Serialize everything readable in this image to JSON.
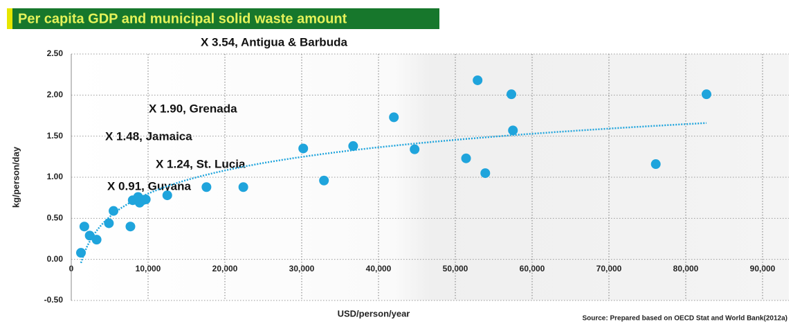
{
  "chart_data": {
    "type": "scatter",
    "title": "Per capita GDP and municipal solid waste amount",
    "xlabel": "USD/person/year",
    "ylabel": "kg/person/day",
    "source": "Source: Prepared based on OECD Stat and World Bank(2012a)",
    "annotations": [
      "X 3.54, Antigua & Barbuda",
      "X 1.90, Grenada",
      "X 1.48, Jamaica",
      "X 1.24, St. Lucia",
      "X 0.91, Guyana"
    ],
    "color": "#1fa4dc",
    "trendline": true,
    "grid": true,
    "x": [
      1260,
      1700,
      2400,
      3300,
      4900,
      5500,
      7700,
      8000,
      8700,
      8900,
      9300,
      9700,
      12500,
      17600,
      22400,
      30200,
      32900,
      36700,
      42000,
      44700,
      51400,
      52900,
      53900,
      57300,
      57500,
      76100,
      82700
    ],
    "values": [
      0.08,
      0.4,
      0.29,
      0.24,
      0.44,
      0.59,
      0.4,
      0.72,
      0.76,
      0.69,
      0.72,
      0.73,
      0.78,
      0.88,
      0.88,
      1.35,
      0.96,
      1.38,
      1.73,
      1.34,
      1.23,
      2.18,
      1.05,
      2.01,
      1.57,
      1.16,
      2.01
    ],
    "xlim": [
      0,
      90000
    ],
    "xticks": [
      0,
      {
        "value": 10000,
        "label": "10,000"
      },
      {
        "value": 20000,
        "label": "20,000"
      },
      {
        "value": 30000,
        "label": "30,000"
      },
      {
        "value": 40000,
        "label": "40,000"
      },
      {
        "value": 50000,
        "label": "50,000"
      },
      {
        "value": 60000,
        "label": "60,000"
      },
      {
        "value": 70000,
        "label": "70,000"
      },
      {
        "value": 80000,
        "label": "80,000"
      },
      {
        "value": 90000,
        "label": "90,000"
      }
    ],
    "ylim": [
      -0.5,
      2.5
    ],
    "yticks": [
      {
        "value": -0.5,
        "label": "-0.50"
      },
      {
        "value": 0,
        "label": "0.00"
      },
      {
        "value": 0.5,
        "label": "0.50"
      },
      {
        "value": 1,
        "label": "1.00"
      },
      {
        "value": 1.5,
        "label": "1.50"
      },
      {
        "value": 2,
        "label": "2.00"
      },
      {
        "value": 2.5,
        "label": "2.50"
      }
    ]
  }
}
